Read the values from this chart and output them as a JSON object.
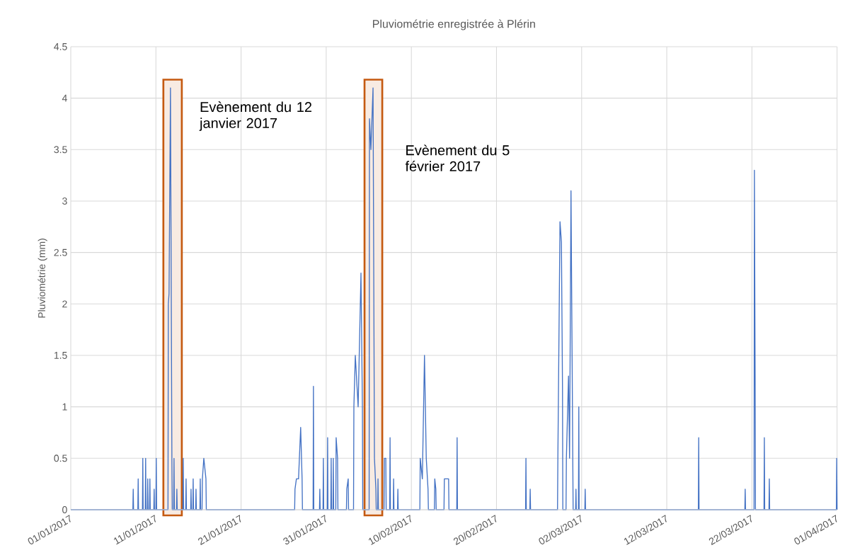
{
  "chart_data": {
    "type": "line",
    "title": "Pluviométrie enregistrée à Plérin",
    "ylabel": "Pluviométrie (mm)",
    "xlim": [
      "2017-01-01",
      "2017-04-01"
    ],
    "xticks": [
      {
        "value": "2017-01-01",
        "label": "01/01/2017"
      },
      {
        "value": "2017-01-11",
        "label": "11/01/2017"
      },
      {
        "value": "2017-01-21",
        "label": "21/01/2017"
      },
      {
        "value": "2017-01-31",
        "label": "31/01/2017"
      },
      {
        "value": "2017-02-10",
        "label": "10/02/2017"
      },
      {
        "value": "2017-02-20",
        "label": "20/02/2017"
      },
      {
        "value": "2017-03-02",
        "label": "02/03/2017"
      },
      {
        "value": "2017-03-12",
        "label": "12/03/2017"
      },
      {
        "value": "2017-03-22",
        "label": "22/03/2017"
      },
      {
        "value": "2017-04-01",
        "label": "01/04/2017"
      }
    ],
    "ylim": [
      0,
      4.5
    ],
    "yticks": [
      0,
      0.5,
      1,
      1.5,
      2,
      2.5,
      3,
      3.5,
      4,
      4.5
    ],
    "grid": true,
    "marker": "none",
    "line_style": "solid",
    "bands": [
      {
        "axis": "x",
        "from": "2017-01-11T21:00",
        "to": "2017-01-14T01:00",
        "label": "Evènement du 12 janvier 2017",
        "color": "#c55a11"
      },
      {
        "axis": "x",
        "from": "2017-02-04T12:00",
        "to": "2017-02-06T14:00",
        "label": "Evènement du 5 février 2017",
        "color": "#c55a11"
      }
    ],
    "series": [
      {
        "color": "#4472c4",
        "x": [
          "2017-01-01T00:00",
          "2017-01-08T07:00",
          "2017-01-08T08:00",
          "2017-01-08T09:00",
          "2017-01-08T21:00",
          "2017-01-08T22:00",
          "2017-01-08T23:00",
          "2017-01-09T10:00",
          "2017-01-09T11:00",
          "2017-01-09T12:00",
          "2017-01-09T18:00",
          "2017-01-09T19:00",
          "2017-01-09T20:00",
          "2017-01-10T00:00",
          "2017-01-10T01:00",
          "2017-01-10T02:00",
          "2017-01-10T06:00",
          "2017-01-10T07:00",
          "2017-01-10T08:00",
          "2017-01-10T18:00",
          "2017-01-10T19:00",
          "2017-01-10T20:00",
          "2017-01-11T00:00",
          "2017-01-11T01:00",
          "2017-01-11T02:00",
          "2017-01-12T10:00",
          "2017-01-12T11:00",
          "2017-01-12T13:00",
          "2017-01-12T17:00",
          "2017-01-12T21:00",
          "2017-01-12T22:00",
          "2017-01-13T02:00",
          "2017-01-13T03:00",
          "2017-01-13T04:00",
          "2017-01-13T10:00",
          "2017-01-13T11:00",
          "2017-01-13T12:00",
          "2017-01-14T04:00",
          "2017-01-14T05:00",
          "2017-01-14T06:00",
          "2017-01-14T12:00",
          "2017-01-14T13:00",
          "2017-01-14T14:00",
          "2017-01-15T02:00",
          "2017-01-15T03:00",
          "2017-01-15T04:00",
          "2017-01-15T08:00",
          "2017-01-15T09:00",
          "2017-01-15T10:00",
          "2017-01-15T16:00",
          "2017-01-15T17:00",
          "2017-01-15T18:00",
          "2017-01-16T04:00",
          "2017-01-16T05:00",
          "2017-01-16T06:00",
          "2017-01-16T10:00",
          "2017-01-16T11:00",
          "2017-01-16T15:00",
          "2017-01-16T21:00",
          "2017-01-16T22:00",
          "2017-01-27T07:00",
          "2017-01-27T08:00",
          "2017-01-27T12:00",
          "2017-01-27T18:00",
          "2017-01-28T00:00",
          "2017-01-28T04:00",
          "2017-01-28T05:00",
          "2017-01-29T11:00",
          "2017-01-29T12:00",
          "2017-01-29T13:00",
          "2017-01-30T05:00",
          "2017-01-30T06:00",
          "2017-01-30T07:00",
          "2017-01-30T15:00",
          "2017-01-30T16:00",
          "2017-01-30T17:00",
          "2017-01-31T03:00",
          "2017-01-31T04:00",
          "2017-01-31T05:00",
          "2017-01-31T13:00",
          "2017-01-31T14:00",
          "2017-01-31T15:00",
          "2017-01-31T19:00",
          "2017-01-31T20:00",
          "2017-01-31T21:00",
          "2017-02-01T03:00",
          "2017-02-01T04:00",
          "2017-02-01T08:00",
          "2017-02-01T09:00",
          "2017-02-02T09:00",
          "2017-02-02T10:00",
          "2017-02-02T14:00",
          "2017-02-02T15:00",
          "2017-02-03T05:00",
          "2017-02-03T06:00",
          "2017-02-03T10:00",
          "2017-02-03T18:00",
          "2017-02-04T02:00",
          "2017-02-04T06:00",
          "2017-02-04T07:00",
          "2017-02-05T01:00",
          "2017-02-05T02:00",
          "2017-02-05T06:00",
          "2017-02-05T12:00",
          "2017-02-05T16:00",
          "2017-02-05T20:00",
          "2017-02-05T21:00",
          "2017-02-06T01:00",
          "2017-02-06T02:00",
          "2017-02-06T03:00",
          "2017-02-06T19:00",
          "2017-02-06T20:00",
          "2017-02-07T00:00",
          "2017-02-07T01:00",
          "2017-02-07T11:00",
          "2017-02-07T12:00",
          "2017-02-07T13:00",
          "2017-02-07T21:00",
          "2017-02-07T22:00",
          "2017-02-07T23:00",
          "2017-02-08T09:00",
          "2017-02-08T10:00",
          "2017-02-08T11:00",
          "2017-02-11T00:00",
          "2017-02-11T01:00",
          "2017-02-11T07:00",
          "2017-02-11T13:00",
          "2017-02-11T18:00",
          "2017-02-11T23:00",
          "2017-02-12T00:00",
          "2017-02-12T17:00",
          "2017-02-12T18:00",
          "2017-02-12T21:00",
          "2017-02-12T22:00",
          "2017-02-13T20:00",
          "2017-02-13T21:00",
          "2017-02-14T03:00",
          "2017-02-14T09:00",
          "2017-02-14T10:00",
          "2017-02-15T08:00",
          "2017-02-15T09:00",
          "2017-02-15T10:00",
          "2017-02-23T10:00",
          "2017-02-23T11:00",
          "2017-02-23T12:00",
          "2017-02-23T22:00",
          "2017-02-23T23:00",
          "2017-02-24T00:00",
          "2017-02-27T04:00",
          "2017-02-27T05:00",
          "2017-02-27T11:00",
          "2017-02-27T15:00",
          "2017-02-27T18:00",
          "2017-02-27T19:00",
          "2017-02-28T04:00",
          "2017-02-28T05:00",
          "2017-02-28T11:00",
          "2017-02-28T14:00",
          "2017-02-28T18:00",
          "2017-02-28T23:00",
          "2017-03-01T00:00",
          "2017-03-01T07:00",
          "2017-03-01T08:00",
          "2017-03-01T09:00",
          "2017-03-01T15:00",
          "2017-03-01T16:00",
          "2017-03-01T17:00",
          "2017-03-02T09:00",
          "2017-03-02T10:00",
          "2017-03-02T11:00",
          "2017-03-15T17:00",
          "2017-03-15T18:00",
          "2017-03-15T19:00",
          "2017-03-21T04:00",
          "2017-03-21T05:00",
          "2017-03-21T06:00",
          "2017-03-22T06:00",
          "2017-03-22T07:00",
          "2017-03-22T09:00",
          "2017-03-22T10:00",
          "2017-03-23T10:00",
          "2017-03-23T11:00",
          "2017-03-23T12:00",
          "2017-03-24T00:00",
          "2017-03-24T01:00",
          "2017-03-24T02:00",
          "2017-03-31T22:00",
          "2017-03-31T23:00",
          "2017-04-01T00:00"
        ],
        "values": [
          0,
          0,
          0.2,
          0,
          0,
          0.3,
          0,
          0,
          0.5,
          0,
          0,
          0.5,
          0,
          0,
          0.3,
          0,
          0,
          0.3,
          0,
          0,
          0.2,
          0,
          0,
          0.5,
          0,
          0,
          2.0,
          2.1,
          4.1,
          0.5,
          0,
          0,
          0.5,
          0,
          0,
          0.2,
          0,
          0,
          0.5,
          0,
          0,
          0.3,
          0,
          0,
          0.2,
          0,
          0,
          0.3,
          0,
          0,
          0.2,
          0,
          0,
          0.3,
          0,
          0,
          0.3,
          0.5,
          0.3,
          0,
          0,
          0.2,
          0.3,
          0.3,
          0.8,
          0.3,
          0,
          0,
          1.2,
          0,
          0,
          0.2,
          0,
          0,
          0.5,
          0,
          0,
          0.7,
          0,
          0,
          0.5,
          0,
          0,
          0.5,
          0,
          0,
          0.7,
          0.5,
          0,
          0,
          0.2,
          0.3,
          0,
          0,
          1.0,
          1.5,
          1.0,
          2.3,
          1.0,
          0,
          0,
          3.8,
          3.5,
          4.1,
          0.5,
          0.2,
          0,
          0,
          0.3,
          0,
          0,
          0.5,
          0.5,
          0,
          0,
          0.7,
          0,
          0,
          0.3,
          0,
          0,
          0.2,
          0,
          0,
          0.5,
          0.3,
          1.5,
          0.5,
          0.2,
          0,
          0,
          0.3,
          0.2,
          0,
          0,
          0.3,
          0.3,
          0.3,
          0,
          0,
          0.7,
          0,
          0,
          0.5,
          0,
          0,
          0.2,
          0,
          0,
          0.5,
          2.8,
          2.6,
          1.2,
          0,
          0,
          0.5,
          1.3,
          0.5,
          3.1,
          0.5,
          0,
          0,
          0.2,
          0,
          0,
          1.0,
          0,
          0,
          0.2,
          0,
          0,
          0.7,
          0,
          0,
          0.2,
          0,
          0,
          3.3,
          1.3,
          0,
          0,
          0.7,
          0,
          0,
          0.3,
          0,
          0,
          0.5,
          0
        ]
      }
    ]
  }
}
